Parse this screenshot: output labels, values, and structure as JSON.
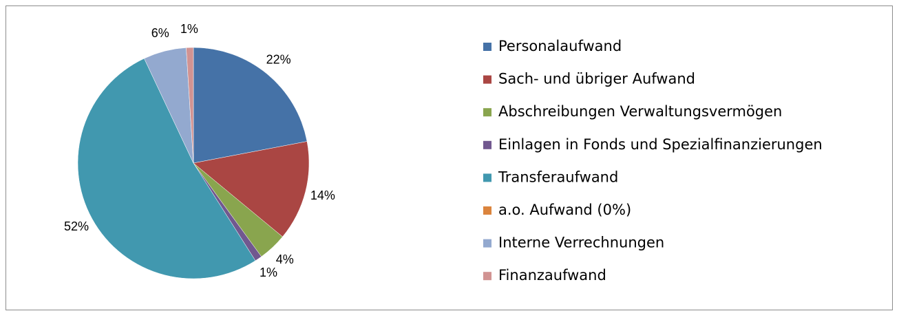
{
  "chart_data": {
    "type": "pie",
    "categories": [
      "Personalaufwand",
      "Sach- und übriger Aufwand",
      "Abschreibungen Verwaltungsvermögen",
      "Einlagen in Fonds und Spezialfinanzierungen",
      "Transferaufwand",
      "a.o. Aufwand (0%)",
      "Interne Verrechnungen",
      "Finanzaufwand"
    ],
    "values": [
      22,
      14,
      4,
      1,
      52,
      0,
      6,
      1
    ],
    "value_labels": [
      "22%",
      "14%",
      "4%",
      "1%",
      "52%",
      null,
      "6%",
      "1%"
    ],
    "colors": [
      "#4572a7",
      "#aa4643",
      "#89a54e",
      "#71588f",
      "#4198af",
      "#db843d",
      "#93a9cf",
      "#d19392"
    ],
    "legend": "right"
  }
}
